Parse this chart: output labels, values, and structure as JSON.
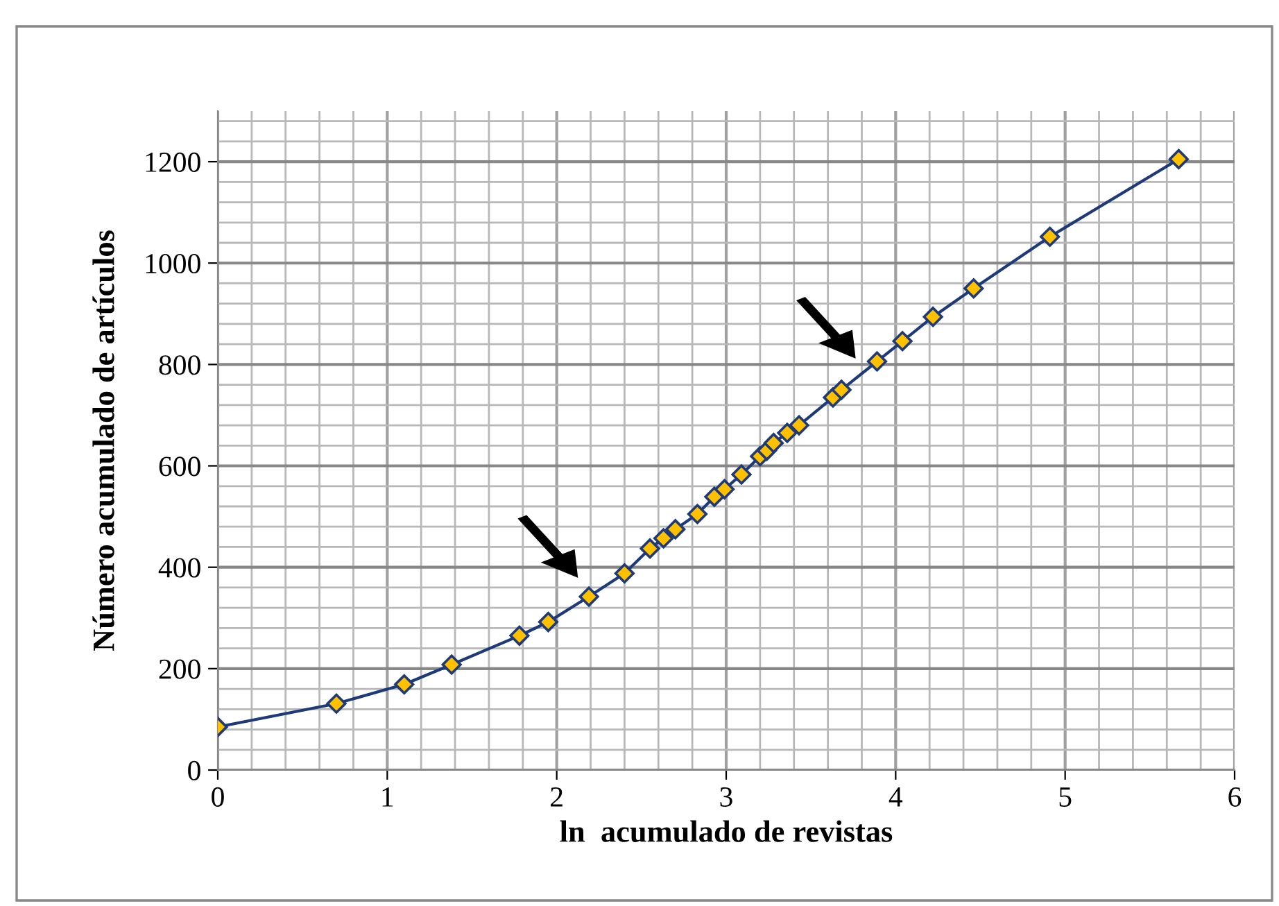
{
  "chart_data": {
    "type": "line",
    "xlabel": "ln  acumulado de revistas",
    "ylabel": "Número acumulado de artículos",
    "xlim": [
      0,
      6
    ],
    "xticks": [
      0,
      1,
      2,
      3,
      4,
      5,
      6
    ],
    "ylim": [
      0,
      1300
    ],
    "yticks": [
      0,
      200,
      400,
      600,
      800,
      1000,
      1200
    ],
    "grid": true,
    "marker": "diamond",
    "line_style": "solid",
    "series": [
      {
        "color": "#1f3a78",
        "x": [
          0,
          0.7,
          1.1,
          1.38,
          1.78,
          1.95,
          2.19,
          2.4,
          2.55,
          2.63,
          2.7,
          2.83,
          2.93,
          2.99,
          3.09,
          3.2,
          3.24,
          3.28,
          3.36,
          3.43,
          3.63,
          3.68,
          3.89,
          4.04,
          4.22,
          4.46,
          4.91,
          5.67
        ],
        "values": [
          85,
          131,
          169,
          208,
          265,
          292,
          342,
          388,
          437,
          457,
          475,
          505,
          539,
          554,
          583,
          619,
          630,
          645,
          665,
          680,
          735,
          750,
          806,
          846,
          894,
          950,
          1052,
          1205
        ]
      }
    ]
  }
}
